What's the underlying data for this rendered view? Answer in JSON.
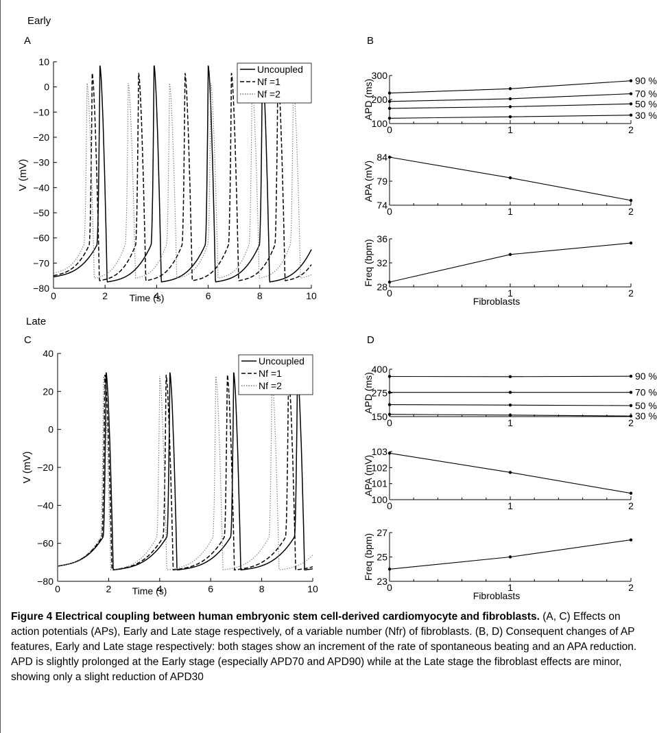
{
  "labels": {
    "early": "Early",
    "late": "Late",
    "A": "A",
    "B": "B",
    "C": "C",
    "D": "D"
  },
  "caption": {
    "title": "Figure 4 Electrical coupling between human embryonic stem cell-derived cardiomyocyte and fibroblasts.",
    "body": "(A, C) Effects on action potentials (APs), Early and Late stage respectively, of a variable number (Nfr) of fibroblasts. (B, D) Consequent changes of AP features, Early and Late stage respectively: both stages show an increment of the rate of spontaneous beating and an APA reduction. APD is slightly prolonged at the Early stage (especially APD70 and APD90) while at the Late stage the fibroblast effects are minor, showing only a slight reduction of APD30"
  },
  "chart_data": [
    {
      "id": "A",
      "type": "line",
      "xlabel": "Time (s)",
      "ylabel": "V (mV)",
      "xlim": [
        0,
        10
      ],
      "ylim": [
        -80,
        10
      ],
      "xticks": [
        0,
        2,
        4,
        6,
        8,
        10
      ],
      "yticks": [
        10,
        0,
        -10,
        -20,
        -30,
        -40,
        -50,
        -60,
        -70,
        -80
      ],
      "legend_position": "top-right",
      "series": [
        {
          "name": "Uncoupled",
          "style": "solid",
          "period": 2.1,
          "first_peak": 1.8,
          "peak": 8.5,
          "rest": -75.5
        },
        {
          "name": "Nf =1",
          "style": "dashed",
          "period": 1.8,
          "first_peak": 1.5,
          "peak": 5.5,
          "rest": -75
        },
        {
          "name": "Nf =2",
          "style": "dotted",
          "period": 1.6,
          "first_peak": 1.3,
          "peak": 1.5,
          "rest": -74
        }
      ]
    },
    {
      "id": "B-APD",
      "type": "line",
      "ylabel": "APD (ms)",
      "xlim": [
        0,
        2
      ],
      "ylim": [
        100,
        300
      ],
      "xticks": [
        0,
        1,
        2
      ],
      "yticks": [
        100,
        200,
        300
      ],
      "categories": [
        0,
        1,
        2
      ],
      "series": [
        {
          "name": "90 %",
          "values": [
            227,
            245,
            278
          ]
        },
        {
          "name": "70 %",
          "values": [
            192,
            203,
            224
          ]
        },
        {
          "name": "50 %",
          "values": [
            163,
            170,
            182
          ]
        },
        {
          "name": "30 %",
          "values": [
            122,
            128,
            135
          ]
        }
      ]
    },
    {
      "id": "B-APA",
      "type": "line",
      "ylabel": "APA (mV)",
      "xlim": [
        0,
        2
      ],
      "ylim": [
        74,
        84
      ],
      "xticks": [
        0,
        1,
        2
      ],
      "yticks": [
        74,
        79,
        84
      ],
      "categories": [
        0,
        1,
        2
      ],
      "series": [
        {
          "values": [
            84,
            79.7,
            75
          ]
        }
      ]
    },
    {
      "id": "B-Freq",
      "type": "line",
      "ylabel": "Freq (bpm)",
      "xlabel": "Fibroblasts",
      "xlim": [
        0,
        2
      ],
      "ylim": [
        28,
        36
      ],
      "xticks": [
        0,
        1,
        2
      ],
      "yticks": [
        28,
        32,
        36
      ],
      "categories": [
        0,
        1,
        2
      ],
      "series": [
        {
          "values": [
            28.8,
            33.4,
            35.3
          ]
        }
      ]
    },
    {
      "id": "C",
      "type": "line",
      "xlabel": "Time (s)",
      "ylabel": "V (mV)",
      "xlim": [
        0,
        10
      ],
      "ylim": [
        -80,
        40
      ],
      "xticks": [
        0,
        2,
        4,
        6,
        8,
        10
      ],
      "yticks": [
        40,
        20,
        0,
        -20,
        -40,
        -60,
        -80
      ],
      "legend_position": "top-right",
      "series": [
        {
          "name": "Uncoupled",
          "style": "solid",
          "period": 2.5,
          "first_peak": 1.9,
          "peak": 30,
          "rest": -72
        },
        {
          "name": "Nf =1",
          "style": "dashed",
          "period": 2.4,
          "first_peak": 1.85,
          "peak": 29,
          "rest": -72
        },
        {
          "name": "Nf =2",
          "style": "dotted",
          "period": 2.2,
          "first_peak": 1.8,
          "peak": 28,
          "rest": -72
        }
      ]
    },
    {
      "id": "D-APD",
      "type": "line",
      "ylabel": "APD (ms)",
      "xlim": [
        0,
        2
      ],
      "ylim": [
        150,
        400
      ],
      "xticks": [
        0,
        1,
        2
      ],
      "yticks": [
        150,
        275,
        400
      ],
      "categories": [
        0,
        1,
        2
      ],
      "series": [
        {
          "name": "90 %",
          "values": [
            362,
            361,
            363
          ]
        },
        {
          "name": "70 %",
          "values": [
            278,
            278,
            278
          ]
        },
        {
          "name": "50 %",
          "values": [
            213,
            211,
            208
          ]
        },
        {
          "name": "30 %",
          "values": [
            162,
            158,
            153
          ]
        }
      ]
    },
    {
      "id": "D-APA",
      "type": "line",
      "ylabel": "APA (mV)",
      "xlim": [
        0,
        2
      ],
      "ylim": [
        100,
        103
      ],
      "xticks": [
        0,
        1,
        2
      ],
      "yticks": [
        100,
        101,
        102,
        103
      ],
      "categories": [
        0,
        1,
        2
      ],
      "series": [
        {
          "values": [
            102.9,
            101.7,
            100.4
          ]
        }
      ]
    },
    {
      "id": "D-Freq",
      "type": "line",
      "ylabel": "Freq (bpm)",
      "xlabel": "Fibroblasts",
      "xlim": [
        0,
        2
      ],
      "ylim": [
        23,
        27
      ],
      "xticks": [
        0,
        1,
        2
      ],
      "yticks": [
        23,
        25,
        27
      ],
      "categories": [
        0,
        1,
        2
      ],
      "series": [
        {
          "values": [
            24,
            25,
            26.4
          ]
        }
      ]
    }
  ]
}
